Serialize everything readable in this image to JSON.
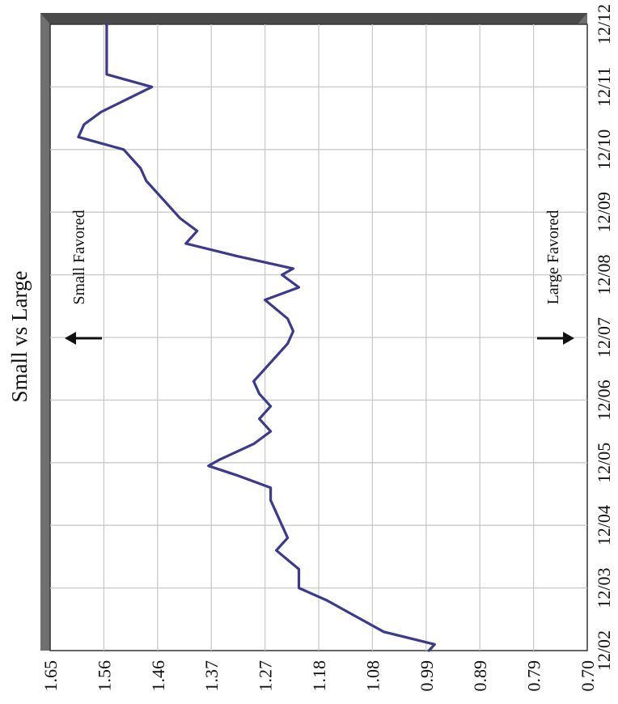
{
  "chart_data": {
    "type": "line",
    "title": "Small vs Large",
    "orientation": "rotated-90",
    "x_tick_labels": [
      "12/02",
      "12/03",
      "12/04",
      "12/05",
      "12/06",
      "12/07",
      "12/08",
      "12/09",
      "12/10",
      "12/11",
      "12/12"
    ],
    "xlim": [
      2002,
      2012
    ],
    "y_tick_labels": [
      "0.70",
      "0.79",
      "0.89",
      "0.99",
      "1.08",
      "1.18",
      "1.27",
      "1.37",
      "1.46",
      "1.56",
      "1.65"
    ],
    "ylim": [
      0.7,
      1.65
    ],
    "grid": true,
    "series": [
      {
        "color": "#3b3a8c",
        "x": [
          2002.0,
          2002.1,
          2002.3,
          2002.6,
          2002.8,
          2003.0,
          2003.3,
          2003.6,
          2003.8,
          2004.0,
          2004.2,
          2004.4,
          2004.6,
          2004.8,
          2004.95,
          2005.05,
          2005.3,
          2005.5,
          2005.7,
          2005.9,
          2006.1,
          2006.3,
          2006.5,
          2006.7,
          2006.9,
          2007.1,
          2007.3,
          2007.6,
          2007.8,
          2008.0,
          2008.1,
          2008.3,
          2008.5,
          2008.7,
          2008.9,
          2009.2,
          2009.5,
          2009.7,
          2010.0,
          2010.2,
          2010.4,
          2010.6,
          2011.0,
          2011.2,
          2011.4,
          2011.6,
          2012.0
        ],
        "y": [
          0.98,
          0.97,
          1.06,
          1.12,
          1.16,
          1.21,
          1.21,
          1.25,
          1.23,
          1.24,
          1.25,
          1.26,
          1.26,
          1.32,
          1.37,
          1.35,
          1.29,
          1.26,
          1.28,
          1.26,
          1.28,
          1.29,
          1.27,
          1.25,
          1.23,
          1.22,
          1.23,
          1.27,
          1.21,
          1.24,
          1.22,
          1.32,
          1.41,
          1.39,
          1.42,
          1.45,
          1.48,
          1.49,
          1.52,
          1.6,
          1.59,
          1.56,
          1.47,
          1.55,
          1.55,
          1.55,
          1.55
        ]
      }
    ],
    "annotations": [
      {
        "text": "Small Favored",
        "arrow": "up"
      },
      {
        "text": "Large Favored",
        "arrow": "down"
      }
    ]
  }
}
